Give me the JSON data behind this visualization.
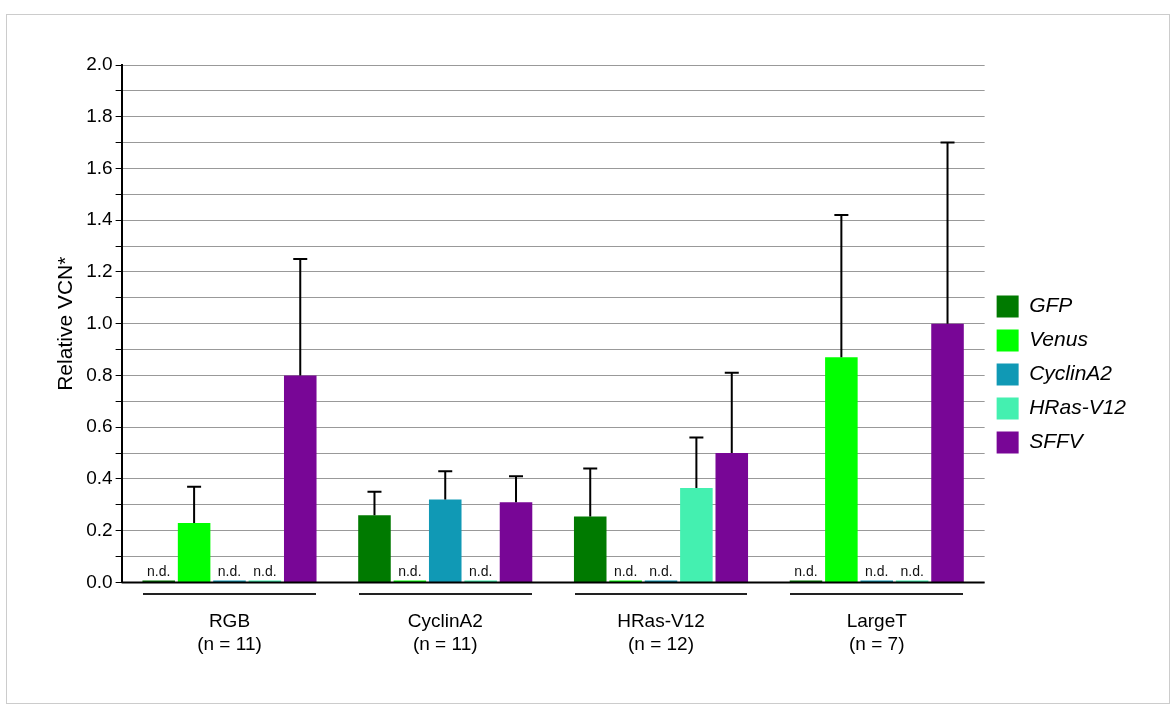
{
  "chart_data": {
    "type": "bar",
    "ylabel": "Relative VCN*",
    "categories": [
      "RGB\n(n = 11)",
      "CyclinA2\n(n = 11)",
      "HRas-V12\n(n = 12)",
      "LargeT\n(n = 7)"
    ],
    "series": [
      {
        "name": "GFP",
        "color": "#007a00",
        "values": [
          0,
          0.26,
          0.255,
          0
        ],
        "errors": [
          null,
          [
            0.26,
            0.35
          ],
          [
            0.255,
            0.44
          ],
          null
        ],
        "value_labels": [
          "n.d.",
          null,
          null,
          "n.d."
        ]
      },
      {
        "name": "Venus",
        "color": "#00ff00",
        "values": [
          0.23,
          0,
          0,
          0.87
        ],
        "errors": [
          [
            0.23,
            0.37
          ],
          null,
          null,
          [
            0.87,
            1.42
          ]
        ],
        "value_labels": [
          null,
          "n.d.",
          "n.d.",
          null
        ]
      },
      {
        "name": "CyclinA2",
        "color": "#1099b5",
        "values": [
          0,
          0.32,
          0,
          0
        ],
        "errors": [
          null,
          [
            0.32,
            0.43
          ],
          null,
          null
        ],
        "value_labels": [
          "n.d.",
          null,
          "n.d.",
          "n.d."
        ]
      },
      {
        "name": "HRas-V12",
        "color": "#44f0b0",
        "values": [
          0,
          0,
          0.365,
          0
        ],
        "errors": [
          null,
          null,
          [
            0.365,
            0.56
          ],
          null
        ],
        "value_labels": [
          "n.d.",
          "n.d.",
          null,
          "n.d."
        ]
      },
      {
        "name": "SFFV",
        "color": "#780696",
        "values": [
          0.8,
          0.31,
          0.5,
          1.0
        ],
        "errors": [
          [
            0.8,
            1.25
          ],
          [
            0.31,
            0.41
          ],
          [
            0.5,
            0.81
          ],
          [
            1.0,
            1.7
          ]
        ]
      }
    ],
    "ylim": [
      0,
      2.0
    ],
    "yticks": [
      {
        "value": 0,
        "label": "0.0"
      },
      {
        "value": 0.1,
        "label": null
      },
      {
        "value": 0.2,
        "label": "0.2"
      },
      {
        "value": 0.3,
        "label": null
      },
      {
        "value": 0.4,
        "label": "0.4"
      },
      {
        "value": 0.5,
        "label": null
      },
      {
        "value": 0.6,
        "label": "0.6"
      },
      {
        "value": 0.7,
        "label": null
      },
      {
        "value": 0.8,
        "label": "0.8"
      },
      {
        "value": 0.9,
        "label": null
      },
      {
        "value": 1.0,
        "label": "1.0"
      },
      {
        "value": 1.1,
        "label": null
      },
      {
        "value": 1.2,
        "label": "1.2"
      },
      {
        "value": 1.3,
        "label": null
      },
      {
        "value": 1.4,
        "label": "1.4"
      },
      {
        "value": 1.5,
        "label": null
      },
      {
        "value": 1.6,
        "label": "1.6"
      },
      {
        "value": 1.7,
        "label": null
      },
      {
        "value": 1.8,
        "label": "1.8"
      },
      {
        "value": 1.9,
        "label": null
      },
      {
        "value": 2.0,
        "label": "2.0"
      }
    ],
    "grid": "y",
    "legend": "right"
  }
}
